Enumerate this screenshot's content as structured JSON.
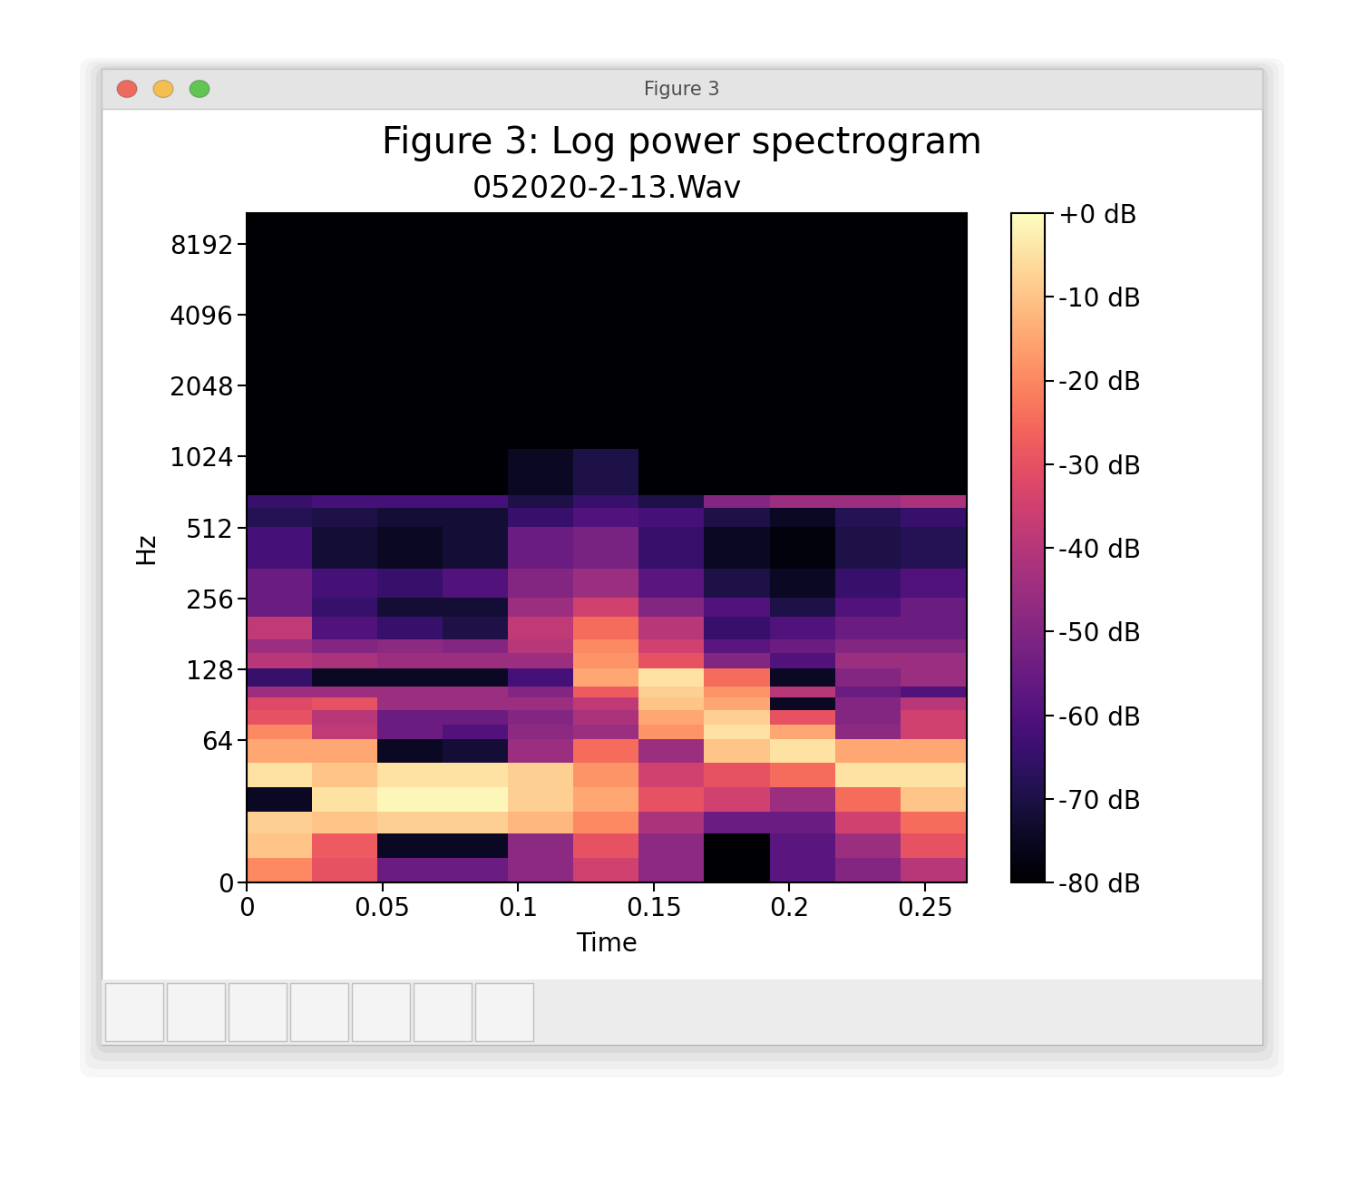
{
  "window": {
    "title": "Figure 3"
  },
  "chart_data": {
    "type": "heatmap",
    "title": "Figure 3: Log power spectrogram",
    "subtitle": "052020-2-13.Wav",
    "x_label": "Time",
    "y_label": "Hz",
    "color": "magma",
    "log": "y",
    "x_edges": [
      0,
      0.0241,
      0.0481,
      0.0722,
      0.0963,
      0.1203,
      0.1444,
      0.1684,
      0.1928,
      0.2169,
      0.241,
      0.2654
    ],
    "y_edges": [
      0,
      11,
      22,
      32,
      43,
      54,
      65,
      75,
      86,
      97,
      108,
      129,
      150,
      172,
      215,
      258,
      344,
      517,
      620,
      700,
      1100,
      3000,
      11025
    ],
    "cells": [
      [
        -20,
        -30,
        -55,
        -55,
        -48,
        -35,
        -48,
        -80,
        -58,
        -50,
        -40
      ],
      [
        -10,
        -28,
        -75,
        -75,
        -48,
        -30,
        -48,
        -80,
        -58,
        -45,
        -30
      ],
      [
        -8,
        -10,
        -8,
        -8,
        -12,
        -20,
        -42,
        -55,
        -55,
        -35,
        -25
      ],
      [
        -75,
        -5,
        -1,
        -1,
        -8,
        -15,
        -30,
        -35,
        -45,
        -25,
        -10
      ],
      [
        -5,
        -10,
        -5,
        -5,
        -8,
        -18,
        -35,
        -30,
        -25,
        -5,
        -5
      ],
      [
        -15,
        -15,
        -75,
        -72,
        -45,
        -25,
        -45,
        -10,
        -5,
        -15,
        -15
      ],
      [
        -20,
        -38,
        -55,
        -60,
        -48,
        -45,
        -18,
        -5,
        -15,
        -48,
        -35
      ],
      [
        -30,
        -40,
        -55,
        -55,
        -50,
        -42,
        -15,
        -8,
        -30,
        -50,
        -35
      ],
      [
        -32,
        -30,
        -45,
        -45,
        -45,
        -38,
        -10,
        -15,
        -75,
        -50,
        -40
      ],
      [
        -45,
        -45,
        -45,
        -45,
        -50,
        -28,
        -8,
        -18,
        -40,
        -55,
        -60
      ],
      [
        -65,
        -75,
        -75,
        -75,
        -62,
        -15,
        -5,
        -25,
        -75,
        -50,
        -45
      ],
      [
        -40,
        -42,
        -45,
        -45,
        -45,
        -18,
        -30,
        -50,
        -60,
        -45,
        -45
      ],
      [
        -45,
        -50,
        -48,
        -50,
        -40,
        -20,
        -35,
        -58,
        -55,
        -50,
        -50
      ],
      [
        -38,
        -60,
        -65,
        -70,
        -38,
        -25,
        -40,
        -65,
        -60,
        -55,
        -55
      ],
      [
        -55,
        -65,
        -72,
        -72,
        -45,
        -35,
        -50,
        -60,
        -70,
        -60,
        -55
      ],
      [
        -55,
        -62,
        -65,
        -60,
        -50,
        -45,
        -58,
        -70,
        -75,
        -65,
        -60
      ],
      [
        -62,
        -72,
        -75,
        -72,
        -55,
        -52,
        -65,
        -75,
        -78,
        -70,
        -68
      ],
      [
        -68,
        -70,
        -72,
        -72,
        -65,
        -60,
        -62,
        -70,
        -75,
        -68,
        -65
      ],
      [
        -65,
        -62,
        -62,
        -62,
        -70,
        -65,
        -70,
        -50,
        -45,
        -45,
        -42
      ],
      [
        -80,
        -80,
        -80,
        -80,
        -75,
        -70,
        -80,
        -80,
        -80,
        -80,
        -80
      ],
      [
        -80,
        -80,
        -80,
        -80,
        -80,
        -80,
        -80,
        -80,
        -80,
        -80,
        -80
      ],
      [
        -80,
        -80,
        -80,
        -80,
        -80,
        -80,
        -80,
        -80,
        -80,
        -80,
        -80
      ]
    ],
    "xlim": [
      0,
      0.2654
    ],
    "xticks": [
      0,
      0.05,
      0.1,
      0.15,
      0.2,
      0.25
    ],
    "ylim": [
      0,
      11025
    ],
    "yticks": [
      0,
      64,
      128,
      256,
      512,
      1024,
      2048,
      4096,
      8192
    ],
    "colorbar": {
      "range": [
        -80,
        0
      ],
      "ticks": [
        {
          "value": 0,
          "label": "+0 dB"
        },
        {
          "value": -10,
          "label": "-10 dB"
        },
        {
          "value": -20,
          "label": "-20 dB"
        },
        {
          "value": -30,
          "label": "-30 dB"
        },
        {
          "value": -40,
          "label": "-40 dB"
        },
        {
          "value": -50,
          "label": "-50 dB"
        },
        {
          "value": -60,
          "label": "-60 dB"
        },
        {
          "value": -70,
          "label": "-70 dB"
        },
        {
          "value": -80,
          "label": "-80 dB"
        }
      ]
    }
  }
}
